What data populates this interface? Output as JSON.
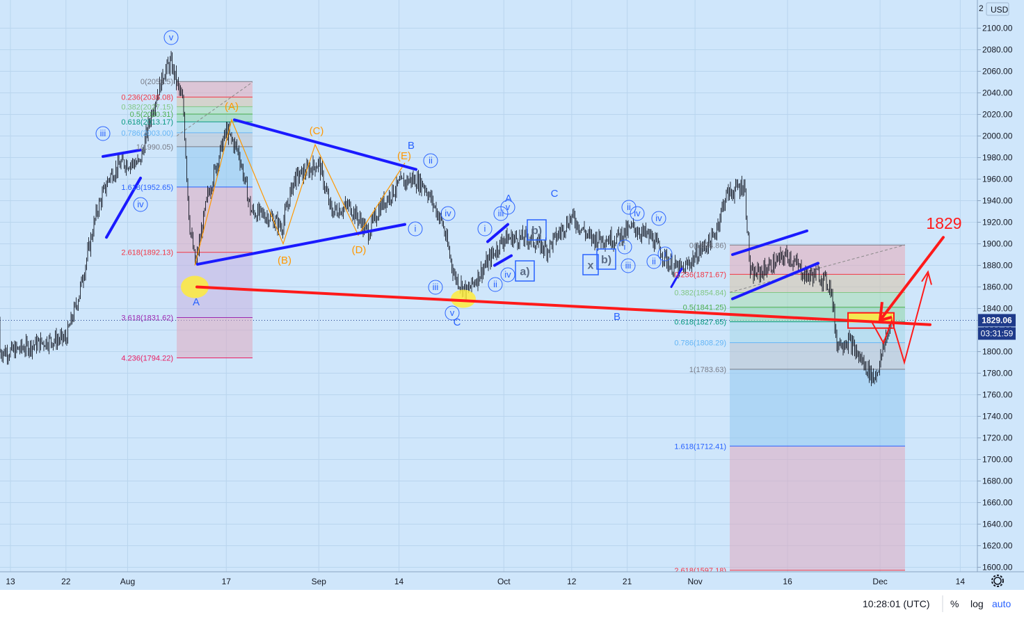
{
  "chart_data": {
    "type": "candlestick",
    "currency": "USD",
    "y_ticks": [
      1600,
      1620,
      1640,
      1660,
      1680,
      1700,
      1720,
      1740,
      1760,
      1780,
      1800,
      1820,
      1840,
      1860,
      1880,
      1900,
      1920,
      1940,
      1960,
      1980,
      2000,
      2020,
      2040,
      2060,
      2080,
      2100
    ],
    "y_tick_labels": [
      "1600.00",
      "1620.00",
      "1640.00",
      "1660.00",
      "1680.00",
      "1700.00",
      "1720.00",
      "1740.00",
      "1760.00",
      "1780.00",
      "1800.00",
      "1820.00",
      "1840.00",
      "1860.00",
      "1880.00",
      "1900.00",
      "1920.00",
      "1940.00",
      "1960.00",
      "1980.00",
      "2000.00",
      "2020.00",
      "2040.00",
      "2060.00",
      "2080.00",
      "2100.00"
    ],
    "y_top_label": "2",
    "ylim": [
      1597,
      2122
    ],
    "x_ticks": [
      "13",
      "22",
      "Aug",
      "17",
      "Sep",
      "14",
      "Oct",
      "12",
      "21",
      "Nov",
      "16",
      "Dec",
      "14"
    ],
    "current_price": "1829.06",
    "countdown": "03:31:59",
    "price_path": [
      [
        "Jul 13",
        1800
      ],
      [
        "Jul 16",
        1805
      ],
      [
        "Jul 19",
        1810
      ],
      [
        "Jul 22",
        1812
      ],
      [
        "Jul 24",
        1850
      ],
      [
        "Jul 27",
        1930
      ],
      [
        "Jul 29",
        1962
      ],
      [
        "Jul 31",
        1975
      ],
      [
        "Aug 3",
        1975
      ],
      [
        "Aug 5",
        2025
      ],
      [
        "Aug 7",
        2060
      ],
      [
        "Aug 8",
        2068
      ],
      [
        "Aug 10",
        2030
      ],
      [
        "Aug 11",
        1920
      ],
      [
        "Aug 12",
        1880
      ],
      [
        "Aug 14",
        1945
      ],
      [
        "Aug 17",
        2005
      ],
      [
        "Aug 19",
        1985
      ],
      [
        "Aug 21",
        1930
      ],
      [
        "Aug 24",
        1925
      ],
      [
        "Aug 26",
        1915
      ],
      [
        "Aug 28",
        1960
      ],
      [
        "Sep 1",
        1975
      ],
      [
        "Sep 3",
        1930
      ],
      [
        "Sep 6",
        1935
      ],
      [
        "Sep 9",
        1910
      ],
      [
        "Sep 11",
        1935
      ],
      [
        "Sep 14",
        1955
      ],
      [
        "Sep 16",
        1960
      ],
      [
        "Sep 18",
        1955
      ],
      [
        "Sep 21",
        1920
      ],
      [
        "Sep 23",
        1870
      ],
      [
        "Sep 25",
        1855
      ],
      [
        "Sep 28",
        1880
      ],
      [
        "Oct 1",
        1905
      ],
      [
        "Oct 5",
        1905
      ],
      [
        "Oct 8",
        1895
      ],
      [
        "Oct 12",
        1925
      ],
      [
        "Oct 15",
        1905
      ],
      [
        "Oct 19",
        1905
      ],
      [
        "Oct 22",
        1915
      ],
      [
        "Oct 25",
        1905
      ],
      [
        "Oct 28",
        1880
      ],
      [
        "Oct 30",
        1875
      ],
      [
        "Nov 2",
        1895
      ],
      [
        "Nov 4",
        1905
      ],
      [
        "Nov 6",
        1945
      ],
      [
        "Nov 9",
        1955
      ],
      [
        "Nov 10",
        1870
      ],
      [
        "Nov 12",
        1875
      ],
      [
        "Nov 16",
        1890
      ],
      [
        "Nov 19",
        1870
      ],
      [
        "Nov 21",
        1872
      ],
      [
        "Nov 23",
        1860
      ],
      [
        "Nov 24",
        1808
      ],
      [
        "Nov 26",
        1810
      ],
      [
        "Nov 27",
        1800
      ],
      [
        "Nov 30",
        1775
      ],
      [
        "Dec 1",
        1790
      ],
      [
        "Dec 2",
        1815
      ],
      [
        "Dec 3",
        1829
      ]
    ],
    "fib_left": [
      {
        "label": "0(2050.5)",
        "color": "#787b86"
      },
      {
        "label": "0.236(2036.08)",
        "color": "#f23645"
      },
      {
        "label": "0.382(2027.15)",
        "color": "#81c784"
      },
      {
        "label": "0.5(2020.31)",
        "color": "#4caf50"
      },
      {
        "label": "0.618(2013.17)",
        "color": "#089981"
      },
      {
        "label": "0.786(2003.00)",
        "color": "#64b5f6"
      },
      {
        "label": "1(1990.05)",
        "color": "#787b86"
      },
      {
        "label": "1.618(1952.65)",
        "color": "#2962ff"
      },
      {
        "label": "2.618(1892.13)",
        "color": "#f23645"
      },
      {
        "label": "3.618(1831.62)",
        "color": "#9c27b0"
      },
      {
        "label": "4.236(1794.22)",
        "color": "#e91e63"
      }
    ],
    "fib_right": [
      {
        "label": "0(1898.86)",
        "color": "#787b86"
      },
      {
        "label": "0.236(1871.67)",
        "color": "#f23645"
      },
      {
        "label": "0.382(1854.84)",
        "color": "#81c784"
      },
      {
        "label": "0.5(1841.25)",
        "color": "#4caf50"
      },
      {
        "label": "0.618(1827.65)",
        "color": "#089981"
      },
      {
        "label": "0.786(1808.29)",
        "color": "#64b5f6"
      },
      {
        "label": "1(1783.63)",
        "color": "#787b86"
      },
      {
        "label": "1.618(1712.41)",
        "color": "#2962ff"
      },
      {
        "label": "2.618(1597.18)",
        "color": "#f23645"
      }
    ],
    "waves_orange": [
      "(A)",
      "(B)",
      "(C)",
      "(D)",
      "(E)"
    ],
    "waves_blue_big": [
      "A",
      "B",
      "C",
      "C",
      "A",
      "B"
    ],
    "waves_circled": [
      "v",
      "iii",
      "iv",
      "ii",
      "i",
      "iii",
      "iv",
      "v",
      "i",
      "ii",
      "iii",
      "iv",
      "v",
      "ii",
      "iv",
      "i",
      "iii",
      "ii",
      "iv",
      "i"
    ],
    "waves_boxed": [
      "a)",
      "b)",
      "x",
      "b)"
    ],
    "annotation_target": "1829"
  },
  "footer": {
    "time": "10:28:01 (UTC)",
    "pct": "%",
    "log": "log",
    "auto": "auto"
  },
  "colors": {
    "background": "#cfe6fb",
    "candle": "#131722",
    "trendline_blue": "#1a1aff",
    "trendline_red": "#ff1a1a",
    "highlight": "#ffeb3b",
    "price_tag": "#1e3a8a"
  }
}
